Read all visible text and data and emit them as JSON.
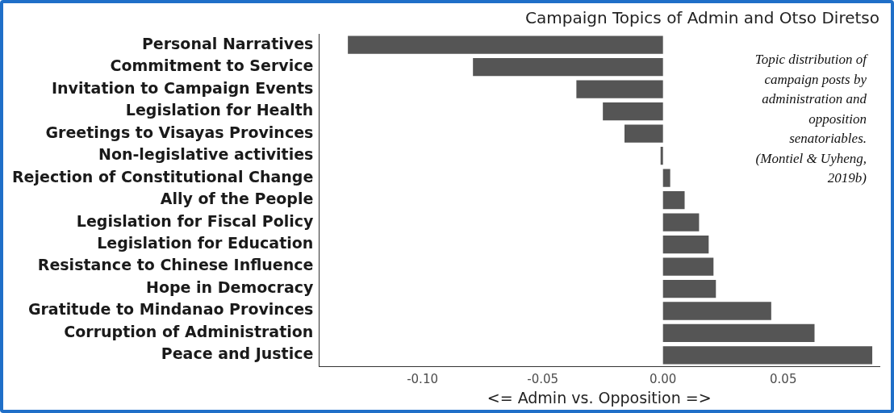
{
  "chart_data": {
    "type": "bar",
    "orientation": "horizontal",
    "title": "Campaign Topics of Admin and Otso Diretso",
    "xlabel": "<= Admin vs. Opposition =>",
    "categories": [
      "Personal Narratives",
      "Commitment to Service",
      "Invitation to Campaign Events",
      "Legislation for Health",
      "Greetings to Visayas Provinces",
      "Non-legislative activities",
      "Rejection of Constitutional Change",
      "Ally of the People",
      "Legislation for Fiscal Policy",
      "Legislation for Education",
      "Resistance to Chinese Influence",
      "Hope in Democracy",
      "Gratitude to Mindanao Provinces",
      "Corruption of Administration",
      "Peace and Justice"
    ],
    "values": [
      -0.131,
      -0.079,
      -0.036,
      -0.025,
      -0.016,
      -0.001,
      0.003,
      0.009,
      0.015,
      0.019,
      0.021,
      0.022,
      0.045,
      0.063,
      0.087
    ],
    "color": "#555555",
    "xlim": [
      -0.143,
      0.09
    ],
    "xticks": [
      {
        "value": -0.1,
        "label": "-0.10"
      },
      -0.05,
      {
        "value": 0,
        "label": "0.00"
      },
      0.05
    ],
    "grid": false,
    "annotations": [
      "Topic distribution of campaign posts by administration and opposition senatoriables. (Montiel & Uyheng, 2019b)"
    ]
  }
}
